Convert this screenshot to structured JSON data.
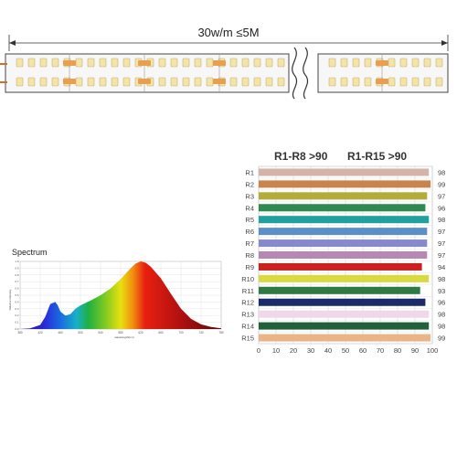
{
  "strip": {
    "length_label": "30w/m ≤5M"
  },
  "spectrum": {
    "title": "Spectrum",
    "ylabel": "Relative intensity",
    "xlabel": "wavelength(nm)"
  },
  "cri": {
    "title_1": "R1-R8 >90",
    "title_2": "R1-R15 >90"
  },
  "chart_data": [
    {
      "type": "area",
      "title": "Spectrum",
      "xlabel": "wavelength(nm)",
      "ylabel": "Relative intensity",
      "xlim": [
        380,
        780
      ],
      "ylim": [
        0,
        1.0
      ],
      "x_ticks": [
        380,
        420,
        460,
        500,
        540,
        580,
        620,
        660,
        700,
        740,
        780
      ],
      "y_ticks": [
        0,
        0.1,
        0.2,
        0.3,
        0.4,
        0.5,
        0.6,
        0.7,
        0.8,
        0.9,
        1.0
      ],
      "grid": true,
      "x": [
        380,
        400,
        420,
        430,
        440,
        450,
        455,
        460,
        470,
        480,
        490,
        500,
        520,
        540,
        560,
        580,
        600,
        610,
        620,
        630,
        640,
        660,
        680,
        700,
        720,
        740,
        760,
        780
      ],
      "y": [
        0.0,
        0.01,
        0.06,
        0.18,
        0.37,
        0.4,
        0.35,
        0.26,
        0.2,
        0.22,
        0.3,
        0.35,
        0.42,
        0.5,
        0.6,
        0.74,
        0.9,
        0.97,
        1.0,
        0.98,
        0.92,
        0.75,
        0.52,
        0.3,
        0.15,
        0.07,
        0.03,
        0.01
      ]
    },
    {
      "type": "bar",
      "orientation": "horizontal",
      "categories": [
        "R1",
        "R2",
        "R3",
        "R4",
        "R5",
        "R6",
        "R7",
        "R8",
        "R9",
        "R10",
        "R11",
        "R12",
        "R13",
        "R14",
        "R15"
      ],
      "values": [
        98,
        99,
        97,
        96,
        98,
        97,
        97,
        97,
        94,
        98,
        93,
        96,
        98,
        98,
        99
      ],
      "colors": [
        "#d4b3a8",
        "#c8844c",
        "#b4ac3a",
        "#2e8a50",
        "#21a0a0",
        "#5a8fc8",
        "#8888cc",
        "#b888b4",
        "#cc2020",
        "#dada40",
        "#2e7a44",
        "#1a2a6a",
        "#f0d8e8",
        "#20603a",
        "#e8b488"
      ],
      "x_ticks": [
        0,
        10,
        20,
        30,
        40,
        50,
        60,
        70,
        80,
        90,
        100
      ],
      "xlim": [
        0,
        100
      ],
      "value_labels": [
        "98",
        "99",
        "97",
        "96",
        "98",
        "97",
        "97",
        "97",
        "94",
        "98",
        "93",
        "96",
        "98",
        "98",
        "99"
      ],
      "grid": true
    }
  ]
}
